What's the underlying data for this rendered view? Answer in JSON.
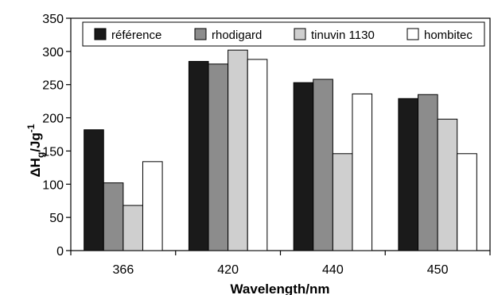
{
  "chart_data": {
    "type": "bar",
    "categories": [
      "366",
      "420",
      "440",
      "450"
    ],
    "series": [
      {
        "name": "référence",
        "values": [
          182,
          285,
          253,
          229
        ],
        "color": "#1a1a1a"
      },
      {
        "name": "rhodigard",
        "values": [
          102,
          281,
          258,
          235
        ],
        "color": "#8c8c8c"
      },
      {
        "name": "tinuvin 1130",
        "values": [
          68,
          302,
          146,
          198
        ],
        "color": "#cfcfcf"
      },
      {
        "name": "hombitec",
        "values": [
          134,
          288,
          236,
          146
        ],
        "color": "#ffffff"
      }
    ],
    "xlabel": "Wavelength/nm",
    "ylabel": {
      "prefix": "ΔH",
      "subscript": "g",
      "unit": "/Jg",
      "superscript": "-1"
    },
    "ylim": [
      0,
      350
    ],
    "yticks": [
      "0",
      "50",
      "100",
      "150",
      "200",
      "250",
      "300",
      "350"
    ],
    "legend_position": "top",
    "grid": false
  }
}
